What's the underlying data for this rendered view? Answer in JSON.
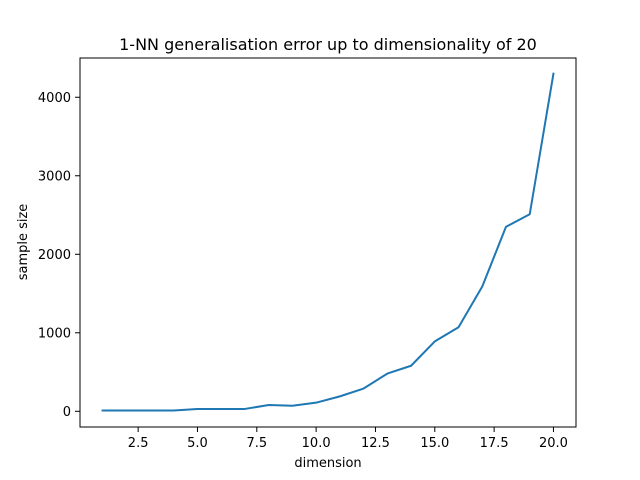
{
  "chart_data": {
    "type": "line",
    "title": "1-NN generalisation error up to dimensionality of 20",
    "xlabel": "dimension",
    "ylabel": "sample size",
    "xlim": [
      0.05,
      20.95
    ],
    "ylim": [
      -200,
      4500
    ],
    "x_ticks": [
      2.5,
      5.0,
      7.5,
      10.0,
      12.5,
      15.0,
      17.5,
      20.0
    ],
    "x_tick_labels": [
      "2.5",
      "5.0",
      "7.5",
      "10.0",
      "12.5",
      "15.0",
      "17.5",
      "20.0"
    ],
    "y_ticks": [
      0,
      1000,
      2000,
      3000,
      4000
    ],
    "y_tick_labels": [
      "0",
      "1000",
      "2000",
      "3000",
      "4000"
    ],
    "grid": false,
    "series": [
      {
        "color": "#1f77b4",
        "x": [
          1,
          2,
          3,
          4,
          5,
          6,
          7,
          8,
          9,
          10,
          11,
          12,
          13,
          14,
          15,
          16,
          17,
          18,
          19,
          20
        ],
        "y": [
          10,
          10,
          10,
          10,
          30,
          30,
          30,
          80,
          70,
          110,
          190,
          290,
          480,
          580,
          890,
          1070,
          1590,
          2350,
          2510,
          4300
        ]
      }
    ]
  }
}
